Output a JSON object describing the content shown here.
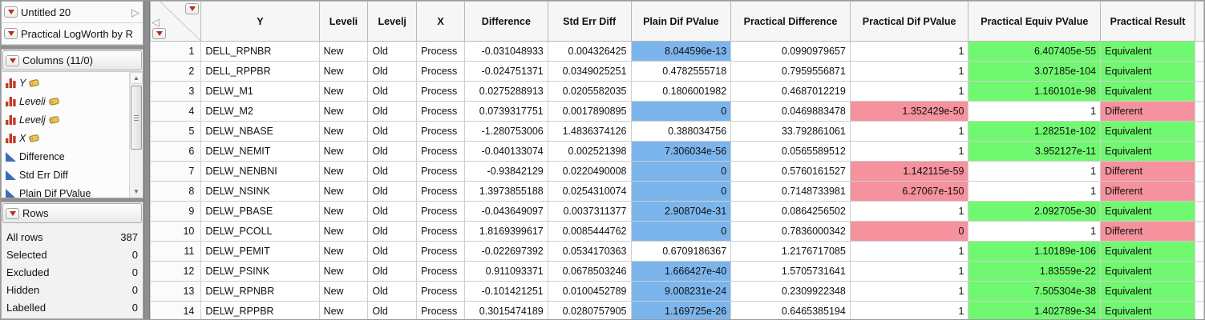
{
  "sidebar": {
    "table_panel": {
      "table_name": "Untitled 20",
      "report_name": "Practical LogWorth by R"
    },
    "columns_panel": {
      "title": "Columns (11/0)",
      "items": [
        {
          "label": "Y",
          "icon": "nominal-bars-icon",
          "tag": true,
          "italic": true
        },
        {
          "label": "Leveli",
          "icon": "nominal-bars-icon",
          "tag": true,
          "italic": true
        },
        {
          "label": "Levelj",
          "icon": "nominal-bars-icon",
          "tag": true,
          "italic": true
        },
        {
          "label": "X",
          "icon": "nominal-bars-icon",
          "tag": true,
          "italic": true
        },
        {
          "label": "Difference",
          "icon": "continuous-triangle-icon",
          "tag": false,
          "italic": false
        },
        {
          "label": "Std Err Diff",
          "icon": "continuous-triangle-icon",
          "tag": false,
          "italic": false
        },
        {
          "label": "Plain Dif PValue",
          "icon": "continuous-triangle-icon",
          "tag": false,
          "italic": false
        }
      ]
    },
    "rows_panel": {
      "title": "Rows",
      "stats": [
        {
          "label": "All rows",
          "value": "387"
        },
        {
          "label": "Selected",
          "value": "0"
        },
        {
          "label": "Excluded",
          "value": "0"
        },
        {
          "label": "Hidden",
          "value": "0"
        },
        {
          "label": "Labelled",
          "value": "0"
        }
      ]
    }
  },
  "table": {
    "headers": [
      "Y",
      "Leveli",
      "Levelj",
      "X",
      "Difference",
      "Std Err Diff",
      "Plain Dif PValue",
      "Practical Difference",
      "Practical Dif PValue",
      "Practical Equiv PValue",
      "Practical Result"
    ],
    "rows": [
      {
        "n": "1",
        "y": "DELL_RPNBR",
        "leveli": "New",
        "levelj": "Old",
        "x": "Process",
        "difference": "-0.031048933",
        "std_err_diff": "0.004326425",
        "plain_dif_pvalue": "8.044596e-13",
        "plain_dif_hl": true,
        "practical_difference": "0.0990979657",
        "practical_dif_pvalue": "1",
        "practical_dif_hl": false,
        "practical_equiv_pvalue": "6.407405e-55",
        "practical_equiv_hl": true,
        "practical_result": "Equivalent"
      },
      {
        "n": "2",
        "y": "DELL_RPPBR",
        "leveli": "New",
        "levelj": "Old",
        "x": "Process",
        "difference": "-0.024751371",
        "std_err_diff": "0.0349025251",
        "plain_dif_pvalue": "0.4782555718",
        "plain_dif_hl": false,
        "practical_difference": "0.7959556871",
        "practical_dif_pvalue": "1",
        "practical_dif_hl": false,
        "practical_equiv_pvalue": "3.07185e-104",
        "practical_equiv_hl": true,
        "practical_result": "Equivalent"
      },
      {
        "n": "3",
        "y": "DELW_M1",
        "leveli": "New",
        "levelj": "Old",
        "x": "Process",
        "difference": "0.0275288913",
        "std_err_diff": "0.0205582035",
        "plain_dif_pvalue": "0.1806001982",
        "plain_dif_hl": false,
        "practical_difference": "0.4687012219",
        "practical_dif_pvalue": "1",
        "practical_dif_hl": false,
        "practical_equiv_pvalue": "1.160101e-98",
        "practical_equiv_hl": true,
        "practical_result": "Equivalent"
      },
      {
        "n": "4",
        "y": "DELW_M2",
        "leveli": "New",
        "levelj": "Old",
        "x": "Process",
        "difference": "0.0739317751",
        "std_err_diff": "0.0017890895",
        "plain_dif_pvalue": "0",
        "plain_dif_hl": true,
        "practical_difference": "0.0469883478",
        "practical_dif_pvalue": "1.352429e-50",
        "practical_dif_hl": true,
        "practical_equiv_pvalue": "1",
        "practical_equiv_hl": false,
        "practical_result": "Different"
      },
      {
        "n": "5",
        "y": "DELW_NBASE",
        "leveli": "New",
        "levelj": "Old",
        "x": "Process",
        "difference": "-1.280753006",
        "std_err_diff": "1.4836374126",
        "plain_dif_pvalue": "0.388034756",
        "plain_dif_hl": false,
        "practical_difference": "33.792861061",
        "practical_dif_pvalue": "1",
        "practical_dif_hl": false,
        "practical_equiv_pvalue": "1.28251e-102",
        "practical_equiv_hl": true,
        "practical_result": "Equivalent"
      },
      {
        "n": "6",
        "y": "DELW_NEMIT",
        "leveli": "New",
        "levelj": "Old",
        "x": "Process",
        "difference": "-0.040133074",
        "std_err_diff": "0.002521398",
        "plain_dif_pvalue": "7.306034e-56",
        "plain_dif_hl": true,
        "practical_difference": "0.0565589512",
        "practical_dif_pvalue": "1",
        "practical_dif_hl": false,
        "practical_equiv_pvalue": "3.952127e-11",
        "practical_equiv_hl": true,
        "practical_result": "Equivalent"
      },
      {
        "n": "7",
        "y": "DELW_NENBNI",
        "leveli": "New",
        "levelj": "Old",
        "x": "Process",
        "difference": "-0.93842129",
        "std_err_diff": "0.0220490008",
        "plain_dif_pvalue": "0",
        "plain_dif_hl": true,
        "practical_difference": "0.5760161527",
        "practical_dif_pvalue": "1.142115e-59",
        "practical_dif_hl": true,
        "practical_equiv_pvalue": "1",
        "practical_equiv_hl": false,
        "practical_result": "Different"
      },
      {
        "n": "8",
        "y": "DELW_NSINK",
        "leveli": "New",
        "levelj": "Old",
        "x": "Process",
        "difference": "1.3973855188",
        "std_err_diff": "0.0254310074",
        "plain_dif_pvalue": "0",
        "plain_dif_hl": true,
        "practical_difference": "0.7148733981",
        "practical_dif_pvalue": "6.27067e-150",
        "practical_dif_hl": true,
        "practical_equiv_pvalue": "1",
        "practical_equiv_hl": false,
        "practical_result": "Different"
      },
      {
        "n": "9",
        "y": "DELW_PBASE",
        "leveli": "New",
        "levelj": "Old",
        "x": "Process",
        "difference": "-0.043649097",
        "std_err_diff": "0.0037311377",
        "plain_dif_pvalue": "2.908704e-31",
        "plain_dif_hl": true,
        "practical_difference": "0.0864256502",
        "practical_dif_pvalue": "1",
        "practical_dif_hl": false,
        "practical_equiv_pvalue": "2.092705e-30",
        "practical_equiv_hl": true,
        "practical_result": "Equivalent"
      },
      {
        "n": "10",
        "y": "DELW_PCOLL",
        "leveli": "New",
        "levelj": "Old",
        "x": "Process",
        "difference": "1.8169399617",
        "std_err_diff": "0.0085444762",
        "plain_dif_pvalue": "0",
        "plain_dif_hl": true,
        "practical_difference": "0.7836000342",
        "practical_dif_pvalue": "0",
        "practical_dif_hl": true,
        "practical_equiv_pvalue": "1",
        "practical_equiv_hl": false,
        "practical_result": "Different"
      },
      {
        "n": "11",
        "y": "DELW_PEMIT",
        "leveli": "New",
        "levelj": "Old",
        "x": "Process",
        "difference": "-0.022697392",
        "std_err_diff": "0.0534170363",
        "plain_dif_pvalue": "0.6709186367",
        "plain_dif_hl": false,
        "practical_difference": "1.2176717085",
        "practical_dif_pvalue": "1",
        "practical_dif_hl": false,
        "practical_equiv_pvalue": "1.10189e-106",
        "practical_equiv_hl": true,
        "practical_result": "Equivalent"
      },
      {
        "n": "12",
        "y": "DELW_PSINK",
        "leveli": "New",
        "levelj": "Old",
        "x": "Process",
        "difference": "0.911093371",
        "std_err_diff": "0.0678503246",
        "plain_dif_pvalue": "1.666427e-40",
        "plain_dif_hl": true,
        "practical_difference": "1.5705731641",
        "practical_dif_pvalue": "1",
        "practical_dif_hl": false,
        "practical_equiv_pvalue": "1.83559e-22",
        "practical_equiv_hl": true,
        "practical_result": "Equivalent"
      },
      {
        "n": "13",
        "y": "DELW_RPNBR",
        "leveli": "New",
        "levelj": "Old",
        "x": "Process",
        "difference": "-0.101421251",
        "std_err_diff": "0.0100452789",
        "plain_dif_pvalue": "9.008231e-24",
        "plain_dif_hl": true,
        "practical_difference": "0.2309922348",
        "practical_dif_pvalue": "1",
        "practical_dif_hl": false,
        "practical_equiv_pvalue": "7.505304e-38",
        "practical_equiv_hl": true,
        "practical_result": "Equivalent"
      },
      {
        "n": "14",
        "y": "DELW_RPPBR",
        "leveli": "New",
        "levelj": "Old",
        "x": "Process",
        "difference": "0.3015474189",
        "std_err_diff": "0.0280757905",
        "plain_dif_pvalue": "1.169725e-26",
        "plain_dif_hl": true,
        "practical_difference": "0.6465385194",
        "practical_dif_pvalue": "1",
        "practical_dif_hl": false,
        "practical_equiv_pvalue": "1.402789e-34",
        "practical_equiv_hl": true,
        "practical_result": "Equivalent"
      }
    ]
  },
  "colors": {
    "highlight_blue": "#7CB5EC",
    "highlight_green": "#70F970",
    "highlight_pink": "#F5929D",
    "red_triangle": "#B5301C",
    "continuous_icon_blue": "#3B6FB5",
    "nominal_icon_red": "#C23A28"
  }
}
